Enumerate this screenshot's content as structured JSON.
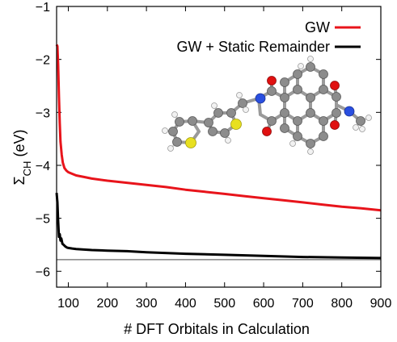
{
  "chart_data": {
    "type": "line",
    "title": "",
    "xlabel": "# DFT Orbitals in Calculation",
    "ylabel_main": "Σ",
    "ylabel_sub": "CH",
    "ylabel_unit": " (eV)",
    "xlim": [
      70,
      900
    ],
    "ylim": [
      -6.3,
      -1
    ],
    "xticks": [
      100,
      200,
      300,
      400,
      500,
      600,
      700,
      800,
      900
    ],
    "yticks": [
      -6,
      -5,
      -4,
      -3,
      -2,
      -1
    ],
    "ytick_labels": [
      "−6",
      "−5",
      "−4",
      "−3",
      "−2",
      "−1"
    ],
    "legend_position": "top-right",
    "series": [
      {
        "name": "GW",
        "color": "#e8141b",
        "x": [
          70,
          72,
          74,
          76,
          78,
          80,
          83,
          86,
          90,
          95,
          100,
          110,
          120,
          140,
          160,
          200,
          250,
          300,
          350,
          400,
          450,
          500,
          550,
          600,
          650,
          700,
          750,
          800,
          850,
          900
        ],
        "y": [
          -1.72,
          -1.75,
          -2.1,
          -2.7,
          -3.2,
          -3.55,
          -3.8,
          -3.95,
          -4.05,
          -4.1,
          -4.13,
          -4.16,
          -4.19,
          -4.22,
          -4.25,
          -4.29,
          -4.33,
          -4.37,
          -4.41,
          -4.46,
          -4.5,
          -4.54,
          -4.58,
          -4.62,
          -4.66,
          -4.7,
          -4.74,
          -4.78,
          -4.81,
          -4.85
        ]
      },
      {
        "name": "GW + Static Remainder",
        "color": "#000000",
        "x": [
          70,
          72,
          74,
          76,
          78,
          80,
          82,
          85,
          88,
          92,
          96,
          100,
          110,
          120,
          140,
          160,
          200,
          250,
          300,
          400,
          500,
          600,
          700,
          800,
          900
        ],
        "y": [
          -4.52,
          -4.7,
          -5.05,
          -5.35,
          -5.3,
          -5.42,
          -5.38,
          -5.48,
          -5.5,
          -5.53,
          -5.55,
          -5.56,
          -5.57,
          -5.58,
          -5.59,
          -5.6,
          -5.61,
          -5.62,
          -5.64,
          -5.67,
          -5.69,
          -5.71,
          -5.73,
          -5.74,
          -5.75
        ]
      }
    ],
    "reference_line": {
      "y": -5.78,
      "color": "#808080"
    }
  }
}
